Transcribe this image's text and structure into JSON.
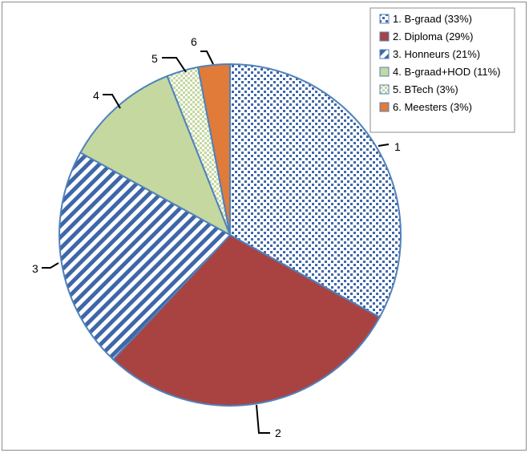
{
  "chart_data": {
    "type": "pie",
    "title": "",
    "slices": [
      {
        "label": "1",
        "legend": "1. B-graad (33%)",
        "value": 33,
        "pattern": "dots",
        "color": "#3e67a8"
      },
      {
        "label": "2",
        "legend": "2. Diploma (29%)",
        "value": 29,
        "pattern": "solid",
        "color": "#a94342"
      },
      {
        "label": "3",
        "legend": "3. Honneurs (21%)",
        "value": 21,
        "pattern": "diagonal-stripes",
        "color": "#3e67a8"
      },
      {
        "label": "4",
        "legend": "4. B-graad+HOD (11%)",
        "value": 11,
        "pattern": "solid",
        "color": "#c4d89f"
      },
      {
        "label": "5",
        "legend": "5. BTech (3%)",
        "value": 3,
        "pattern": "light-checker",
        "color": "#c4d89f"
      },
      {
        "label": "6",
        "legend": "6. Meesters (3%)",
        "value": 3,
        "pattern": "solid",
        "color": "#e07b39"
      }
    ],
    "legend_position": "top-right",
    "edge_color": "#4f81bd"
  }
}
